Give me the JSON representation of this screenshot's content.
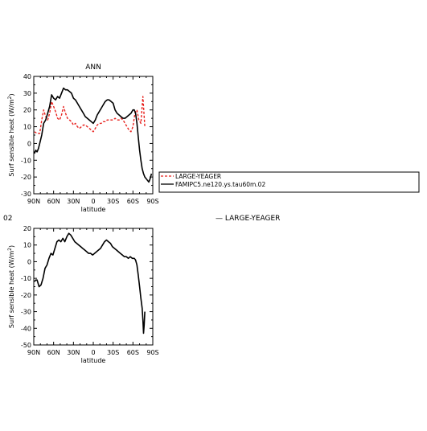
{
  "chart_data": [
    {
      "type": "line",
      "title": "ANN",
      "xlabel": "latitude",
      "ylabel": "Surf sensible heat (W/m²)",
      "ylabel_text": "Surf sensible heat (W/m",
      "ylabel_sup": "2",
      "ylabel_close": ")",
      "x_ticks": [
        {
          "value": -90,
          "label": "90N"
        },
        {
          "value": -60,
          "label": "60N"
        },
        {
          "value": -30,
          "label": "30N"
        },
        {
          "value": 0,
          "label": "0"
        },
        {
          "value": 30,
          "label": "30S"
        },
        {
          "value": 60,
          "label": "60S"
        },
        {
          "value": 90,
          "label": "90S"
        }
      ],
      "xlim": [
        -90,
        90
      ],
      "ylim": [
        -30,
        40
      ],
      "y_ticks": [
        -30,
        -20,
        -10,
        0,
        10,
        20,
        30,
        40
      ],
      "legend": {
        "placement": "right",
        "entries": [
          {
            "label": "LARGE-YEAGER",
            "color": "#e8231f",
            "dash": true
          },
          {
            "label": "FAMIPC5.ne120.ys.tau60m.02",
            "color": "#000000",
            "dash": false
          }
        ]
      },
      "series": [
        {
          "name": "LARGE-YEAGER",
          "color": "#e8231f",
          "dash": true,
          "x": [
            -89,
            -85,
            -81,
            -78,
            -75,
            -72,
            -69,
            -66,
            -63,
            -60,
            -57,
            -54,
            -51,
            -48,
            -45,
            -42,
            -39,
            -36,
            -33,
            -30,
            -27,
            -24,
            -21,
            -18,
            -15,
            -12,
            -9,
            -6,
            -3,
            0,
            3,
            6,
            9,
            12,
            15,
            18,
            21,
            24,
            27,
            30,
            33,
            36,
            39,
            42,
            45,
            48,
            51,
            54,
            57,
            60,
            63,
            66,
            69,
            72,
            75,
            78
          ],
          "y": [
            7,
            6,
            6,
            14,
            20,
            16,
            14,
            18,
            25,
            22,
            19,
            15,
            14,
            17,
            22,
            18,
            15,
            14,
            13,
            11,
            12,
            10,
            9,
            10,
            11,
            11,
            10,
            9,
            8,
            7,
            9,
            11,
            12,
            12,
            13,
            13,
            14,
            14,
            14,
            14,
            15,
            14,
            14,
            15,
            14,
            12,
            10,
            8,
            7,
            10,
            18,
            20,
            14,
            12,
            28,
            10
          ]
        },
        {
          "name": "FAMIPC5.ne120.ys.tau60m.02",
          "color": "#000000",
          "dash": false,
          "x": [
            -89,
            -87,
            -85,
            -83,
            -81,
            -78,
            -75,
            -72,
            -69,
            -66,
            -63,
            -60,
            -57,
            -54,
            -51,
            -48,
            -45,
            -42,
            -39,
            -36,
            -33,
            -30,
            -27,
            -24,
            -21,
            -18,
            -15,
            -12,
            -9,
            -6,
            -3,
            0,
            3,
            6,
            9,
            12,
            15,
            18,
            21,
            24,
            27,
            30,
            33,
            36,
            39,
            42,
            45,
            48,
            51,
            54,
            57,
            60,
            62,
            64,
            66,
            68,
            70,
            72,
            74,
            76,
            78,
            80,
            82,
            84,
            86,
            88
          ],
          "y": [
            -6,
            -4,
            -5,
            -3,
            0,
            5,
            12,
            14,
            18,
            22,
            29,
            27,
            26,
            28,
            27,
            30,
            33,
            32,
            32,
            31,
            30,
            27,
            26,
            24,
            22,
            20,
            18,
            16,
            15,
            14,
            13,
            12,
            14,
            17,
            19,
            21,
            23,
            25,
            26,
            26,
            25,
            24,
            20,
            18,
            17,
            16,
            15,
            15,
            16,
            17,
            18,
            20,
            20,
            18,
            12,
            4,
            -4,
            -10,
            -15,
            -18,
            -20,
            -21,
            -22,
            -23,
            -21,
            -18
          ]
        }
      ]
    },
    {
      "type": "line",
      "title": "",
      "xlabel": "latitude",
      "ylabel": "Surf sensible heat (W/m²)",
      "ylabel_text": "Surf sensible heat (W/m",
      "ylabel_sup": "2",
      "ylabel_close": ")",
      "x_ticks": [
        {
          "value": -90,
          "label": "90N"
        },
        {
          "value": -60,
          "label": "60N"
        },
        {
          "value": -30,
          "label": "30N"
        },
        {
          "value": 0,
          "label": "0"
        },
        {
          "value": 30,
          "label": "30S"
        },
        {
          "value": 60,
          "label": "60S"
        },
        {
          "value": 90,
          "label": "90S"
        }
      ],
      "xlim": [
        -90,
        90
      ],
      "ylim": [
        -50,
        20
      ],
      "y_ticks": [
        -50,
        -40,
        -30,
        -20,
        -10,
        0,
        10,
        20
      ],
      "series": [
        {
          "name": "",
          "color": "#000000",
          "dash": false,
          "x": [
            -89,
            -87,
            -85,
            -82,
            -79,
            -76,
            -73,
            -70,
            -67,
            -64,
            -61,
            -58,
            -55,
            -52,
            -49,
            -46,
            -43,
            -40,
            -37,
            -34,
            -31,
            -28,
            -25,
            -22,
            -19,
            -16,
            -13,
            -10,
            -7,
            -4,
            -1,
            2,
            5,
            8,
            11,
            14,
            17,
            20,
            23,
            26,
            29,
            32,
            35,
            38,
            41,
            44,
            47,
            50,
            53,
            56,
            59,
            62,
            64,
            66,
            68,
            70,
            72,
            74,
            75,
            76,
            77,
            78
          ],
          "y": [
            -12,
            -11,
            -11,
            -15,
            -14,
            -10,
            -4,
            -2,
            2,
            5,
            4,
            8,
            12,
            13,
            12,
            14,
            12,
            15,
            17,
            16,
            14,
            12,
            11,
            10,
            9,
            8,
            7,
            6,
            5,
            5,
            4,
            5,
            6,
            7,
            8,
            10,
            12,
            13,
            12,
            11,
            9,
            8,
            7,
            6,
            5,
            4,
            3,
            3,
            2,
            3,
            2,
            2,
            1,
            -2,
            -8,
            -15,
            -22,
            -28,
            -35,
            -43,
            -38,
            -30
          ]
        }
      ]
    }
  ],
  "labels": {
    "stray_left": "02",
    "stray_legend": "— LARGE-YEAGER"
  }
}
